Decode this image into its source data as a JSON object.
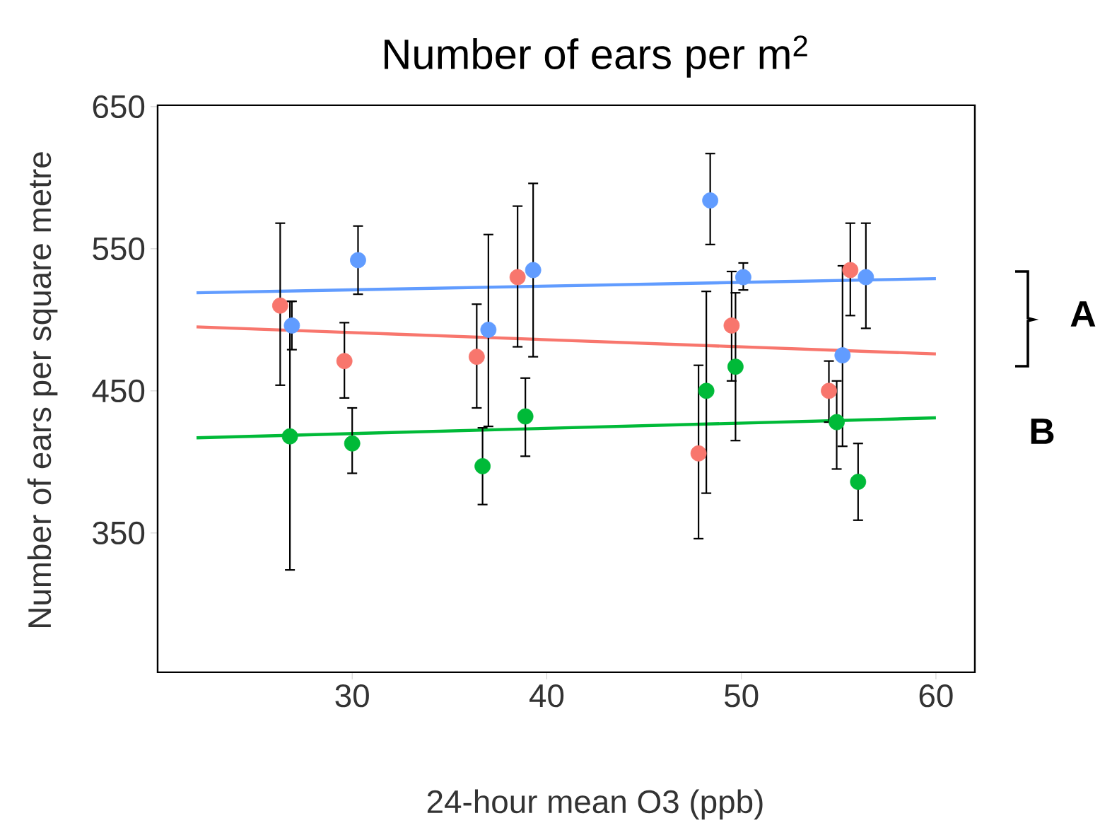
{
  "chart_data": {
    "type": "scatter",
    "title": "Number of ears per m$^{2}$",
    "xlabel": "24-hour mean O3 (ppb)",
    "ylabel": "Number of ears per square metre",
    "xlim": [
      20,
      62
    ],
    "ylim": [
      252,
      651
    ],
    "xticks": [
      30,
      40,
      50,
      60
    ],
    "yticks": [
      350,
      450,
      550,
      650
    ],
    "marker": "circle",
    "annotations": [
      "A",
      "B"
    ],
    "series": [
      {
        "type": "line",
        "color": "#619cff",
        "marker": "none",
        "x": [
          22,
          60
        ],
        "values": [
          519,
          529
        ]
      },
      {
        "type": "line",
        "color": "#f8766d",
        "marker": "none",
        "x": [
          22,
          60
        ],
        "values": [
          495,
          476
        ]
      },
      {
        "type": "line",
        "color": "#00ba38",
        "marker": "none",
        "x": [
          22,
          60
        ],
        "values": [
          417,
          431
        ]
      },
      {
        "color": "#f8766d",
        "x": [
          26.3,
          29.6,
          36.4,
          38.5,
          47.8,
          49.5,
          54.5,
          55.6
        ],
        "values": [
          510,
          471,
          474,
          530,
          406,
          496,
          450,
          535
        ],
        "errors": [
          [
            454,
            568
          ],
          [
            445,
            498
          ],
          [
            438,
            511
          ],
          [
            481,
            580
          ],
          [
            346,
            468
          ],
          [
            457,
            534
          ],
          [
            428,
            471
          ],
          [
            503,
            568
          ]
        ]
      },
      {
        "color": "#619cff",
        "x": [
          26.9,
          30.3,
          37.0,
          39.3,
          48.4,
          50.1,
          55.2,
          56.4
        ],
        "values": [
          496,
          542,
          493,
          535,
          584,
          530,
          475,
          530
        ],
        "errors": [
          [
            479,
            513
          ],
          [
            518,
            566
          ],
          [
            425,
            560
          ],
          [
            474,
            596
          ],
          [
            553,
            617
          ],
          [
            521,
            540
          ],
          [
            411,
            538
          ],
          [
            494,
            568
          ]
        ]
      },
      {
        "color": "#00ba38",
        "x": [
          26.8,
          30.0,
          36.7,
          38.9,
          48.2,
          49.7,
          54.9,
          56.0
        ],
        "values": [
          418,
          413,
          397,
          432,
          450,
          467,
          428,
          386
        ],
        "errors": [
          [
            324,
            513
          ],
          [
            392,
            438
          ],
          [
            370,
            424
          ],
          [
            404,
            459
          ],
          [
            378,
            520
          ],
          [
            415,
            519
          ],
          [
            395,
            457
          ],
          [
            359,
            413
          ]
        ]
      }
    ]
  }
}
